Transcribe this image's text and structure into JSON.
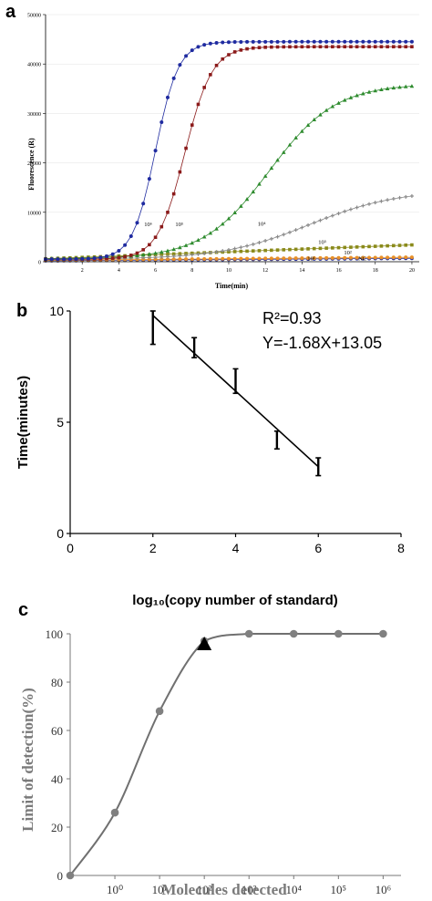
{
  "chart_data": [
    {
      "panel": "a",
      "type": "line",
      "title": "",
      "xlabel": "Time(min)",
      "ylabel": "Fluorescence (R)",
      "xlim": [
        0,
        20.4
      ],
      "ylim": [
        0,
        50000
      ],
      "x_ticks": [
        2,
        4,
        6,
        8,
        10,
        12,
        14,
        16,
        18,
        20
      ],
      "y_ticks": [
        0,
        10000,
        20000,
        30000,
        40000,
        50000
      ],
      "colors": [
        "#1f2ba0",
        "#8b1a1a",
        "#2e8b2e",
        "#8a8a8a",
        "#8a8a1a",
        "#e89028"
      ],
      "series": [
        {
          "name": "10⁶",
          "kind": "sigmoid",
          "base": 500,
          "plateau": 44500,
          "mid": 6.0,
          "k": 1.6,
          "marker": "circle"
        },
        {
          "name": "10⁵",
          "kind": "sigmoid",
          "base": 500,
          "plateau": 43500,
          "mid": 7.6,
          "k": 1.35,
          "marker": "square"
        },
        {
          "name": "10⁴",
          "kind": "sigmoid",
          "base": 600,
          "plateau": 36000,
          "mid": 12.2,
          "k": 0.55,
          "marker": "triangle"
        },
        {
          "name": "10³",
          "kind": "sigmoid",
          "base": 500,
          "plateau": 14500,
          "mid": 14.4,
          "k": 0.42,
          "marker": "star"
        },
        {
          "name": "10²",
          "kind": "linear",
          "start": 600,
          "end": 3400,
          "marker": "square"
        },
        {
          "name": "10¹",
          "kind": "linear",
          "start": 300,
          "end": 900,
          "marker": "circle"
        },
        {
          "name": "NC",
          "kind": "linear",
          "start": 200,
          "end": 700,
          "marker": "circle"
        }
      ]
    },
    {
      "panel": "b",
      "type": "scatter",
      "title": "",
      "xlabel": "log₁₀(copy number of standard)",
      "ylabel": "Time(minutes)",
      "xlim": [
        0,
        8
      ],
      "ylim": [
        0,
        10
      ],
      "x_ticks": [
        0,
        2,
        4,
        6,
        8
      ],
      "y_ticks": [
        0,
        5,
        10
      ],
      "annotations": [
        "R²=0.93",
        "Y=-1.68X+13.05"
      ],
      "points": [
        {
          "x": 2,
          "low": 8.5,
          "high": 10.0
        },
        {
          "x": 3,
          "low": 7.9,
          "high": 8.8
        },
        {
          "x": 4,
          "low": 6.3,
          "high": 7.4
        },
        {
          "x": 5,
          "low": 3.8,
          "high": 4.6
        },
        {
          "x": 6,
          "low": 2.6,
          "high": 3.4
        }
      ],
      "fit": {
        "x": [
          2,
          6
        ],
        "y": [
          9.8,
          3.0
        ]
      }
    },
    {
      "panel": "c",
      "type": "line",
      "title": "",
      "xlabel": "Molecules detected",
      "ylabel": "Limit of detection(%)",
      "ylim": [
        0,
        100
      ],
      "y_ticks": [
        0,
        20,
        40,
        60,
        80,
        100
      ],
      "x_ticks": [
        "10⁰",
        "10¹",
        "10²",
        "10³",
        "10⁴",
        "10⁵",
        "10⁶"
      ],
      "x": [
        -1,
        0,
        1,
        2,
        3,
        4,
        5,
        6
      ],
      "y": [
        0,
        26,
        68,
        97,
        100,
        100,
        100,
        100
      ],
      "marker_triangle_x": 2
    }
  ],
  "panel_labels": [
    "a",
    "b",
    "c"
  ]
}
